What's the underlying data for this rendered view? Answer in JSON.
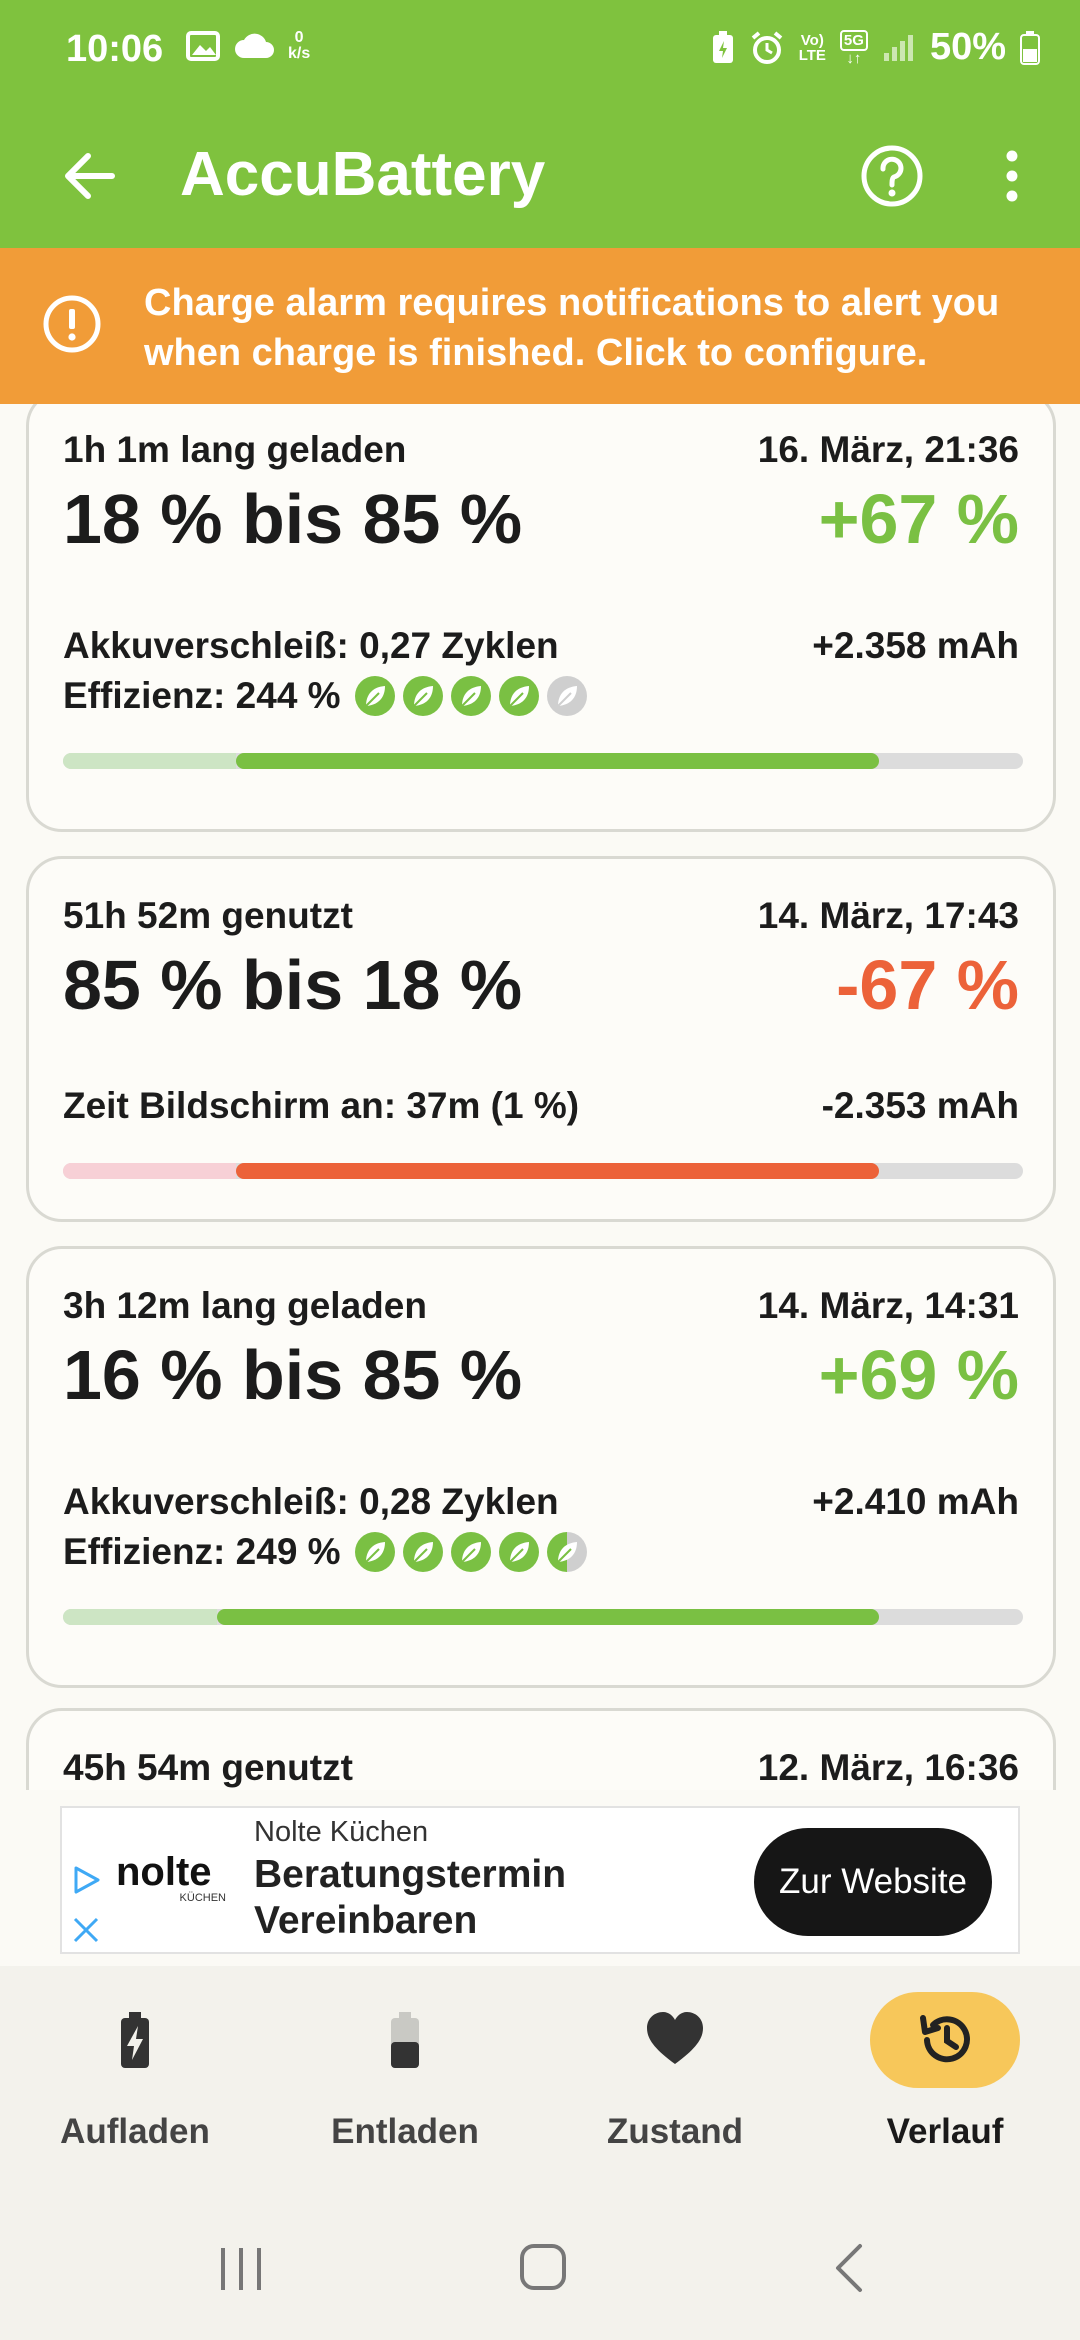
{
  "status_bar": {
    "time": "10:06",
    "net_speed_value": "0",
    "net_speed_unit": "k/s",
    "volte": "Vo)",
    "lte": "LTE",
    "network": "5G",
    "battery_percent": "50%"
  },
  "app_bar": {
    "title": "AccuBattery"
  },
  "banner": {
    "text": "Charge alarm requires notifications to alert you when charge is finished. Click to configure."
  },
  "sessions": [
    {
      "duration": "1h 1m lang geladen",
      "date": "16. März, 21:36",
      "range": "18 % bis 85 %",
      "delta": "+67 %",
      "detail_label": "Akkuverschleiß: 0,27 Zyklen",
      "mah": "+2.358 mAh",
      "efficiency": "Effizienz: 244 %",
      "leaf_score": 4,
      "start_pct": 18,
      "end_pct": 85,
      "type": "charge"
    },
    {
      "duration": "51h 52m genutzt",
      "date": "14. März, 17:43",
      "range": "85 % bis 18 %",
      "delta": "-67 %",
      "detail_label": "Zeit Bildschirm an: 37m (1 %)",
      "mah": "-2.353 mAh",
      "start_pct": 18,
      "end_pct": 85,
      "type": "discharge"
    },
    {
      "duration": "3h 12m lang geladen",
      "date": "14. März, 14:31",
      "range": "16 % bis 85 %",
      "delta": "+69 %",
      "detail_label": "Akkuverschleiß: 0,28 Zyklen",
      "mah": "+2.410 mAh",
      "efficiency": "Effizienz: 249 %",
      "leaf_score": 4.5,
      "start_pct": 16,
      "end_pct": 85,
      "type": "charge"
    },
    {
      "duration": "45h 54m genutzt",
      "date": "12. März, 16:36",
      "type": "discharge"
    }
  ],
  "ad": {
    "brand": "Nolte Küchen",
    "logo_word": "nolte",
    "logo_sub": "KÜCHEN",
    "headline": "Beratungstermin Vereinbaren",
    "cta": "Zur Website"
  },
  "bottom_nav": {
    "items": [
      {
        "label": "Aufladen",
        "icon": "battery-charging-icon"
      },
      {
        "label": "Entladen",
        "icon": "battery-half-icon"
      },
      {
        "label": "Zustand",
        "icon": "heart-icon"
      },
      {
        "label": "Verlauf",
        "icon": "history-icon"
      }
    ],
    "active_index": 3
  },
  "colors": {
    "app_green": "#7fc23e",
    "banner_orange": "#f19c38",
    "charge_green": "#7ac043",
    "discharge_red": "#ec6239",
    "active_nav": "#f7c75a"
  }
}
